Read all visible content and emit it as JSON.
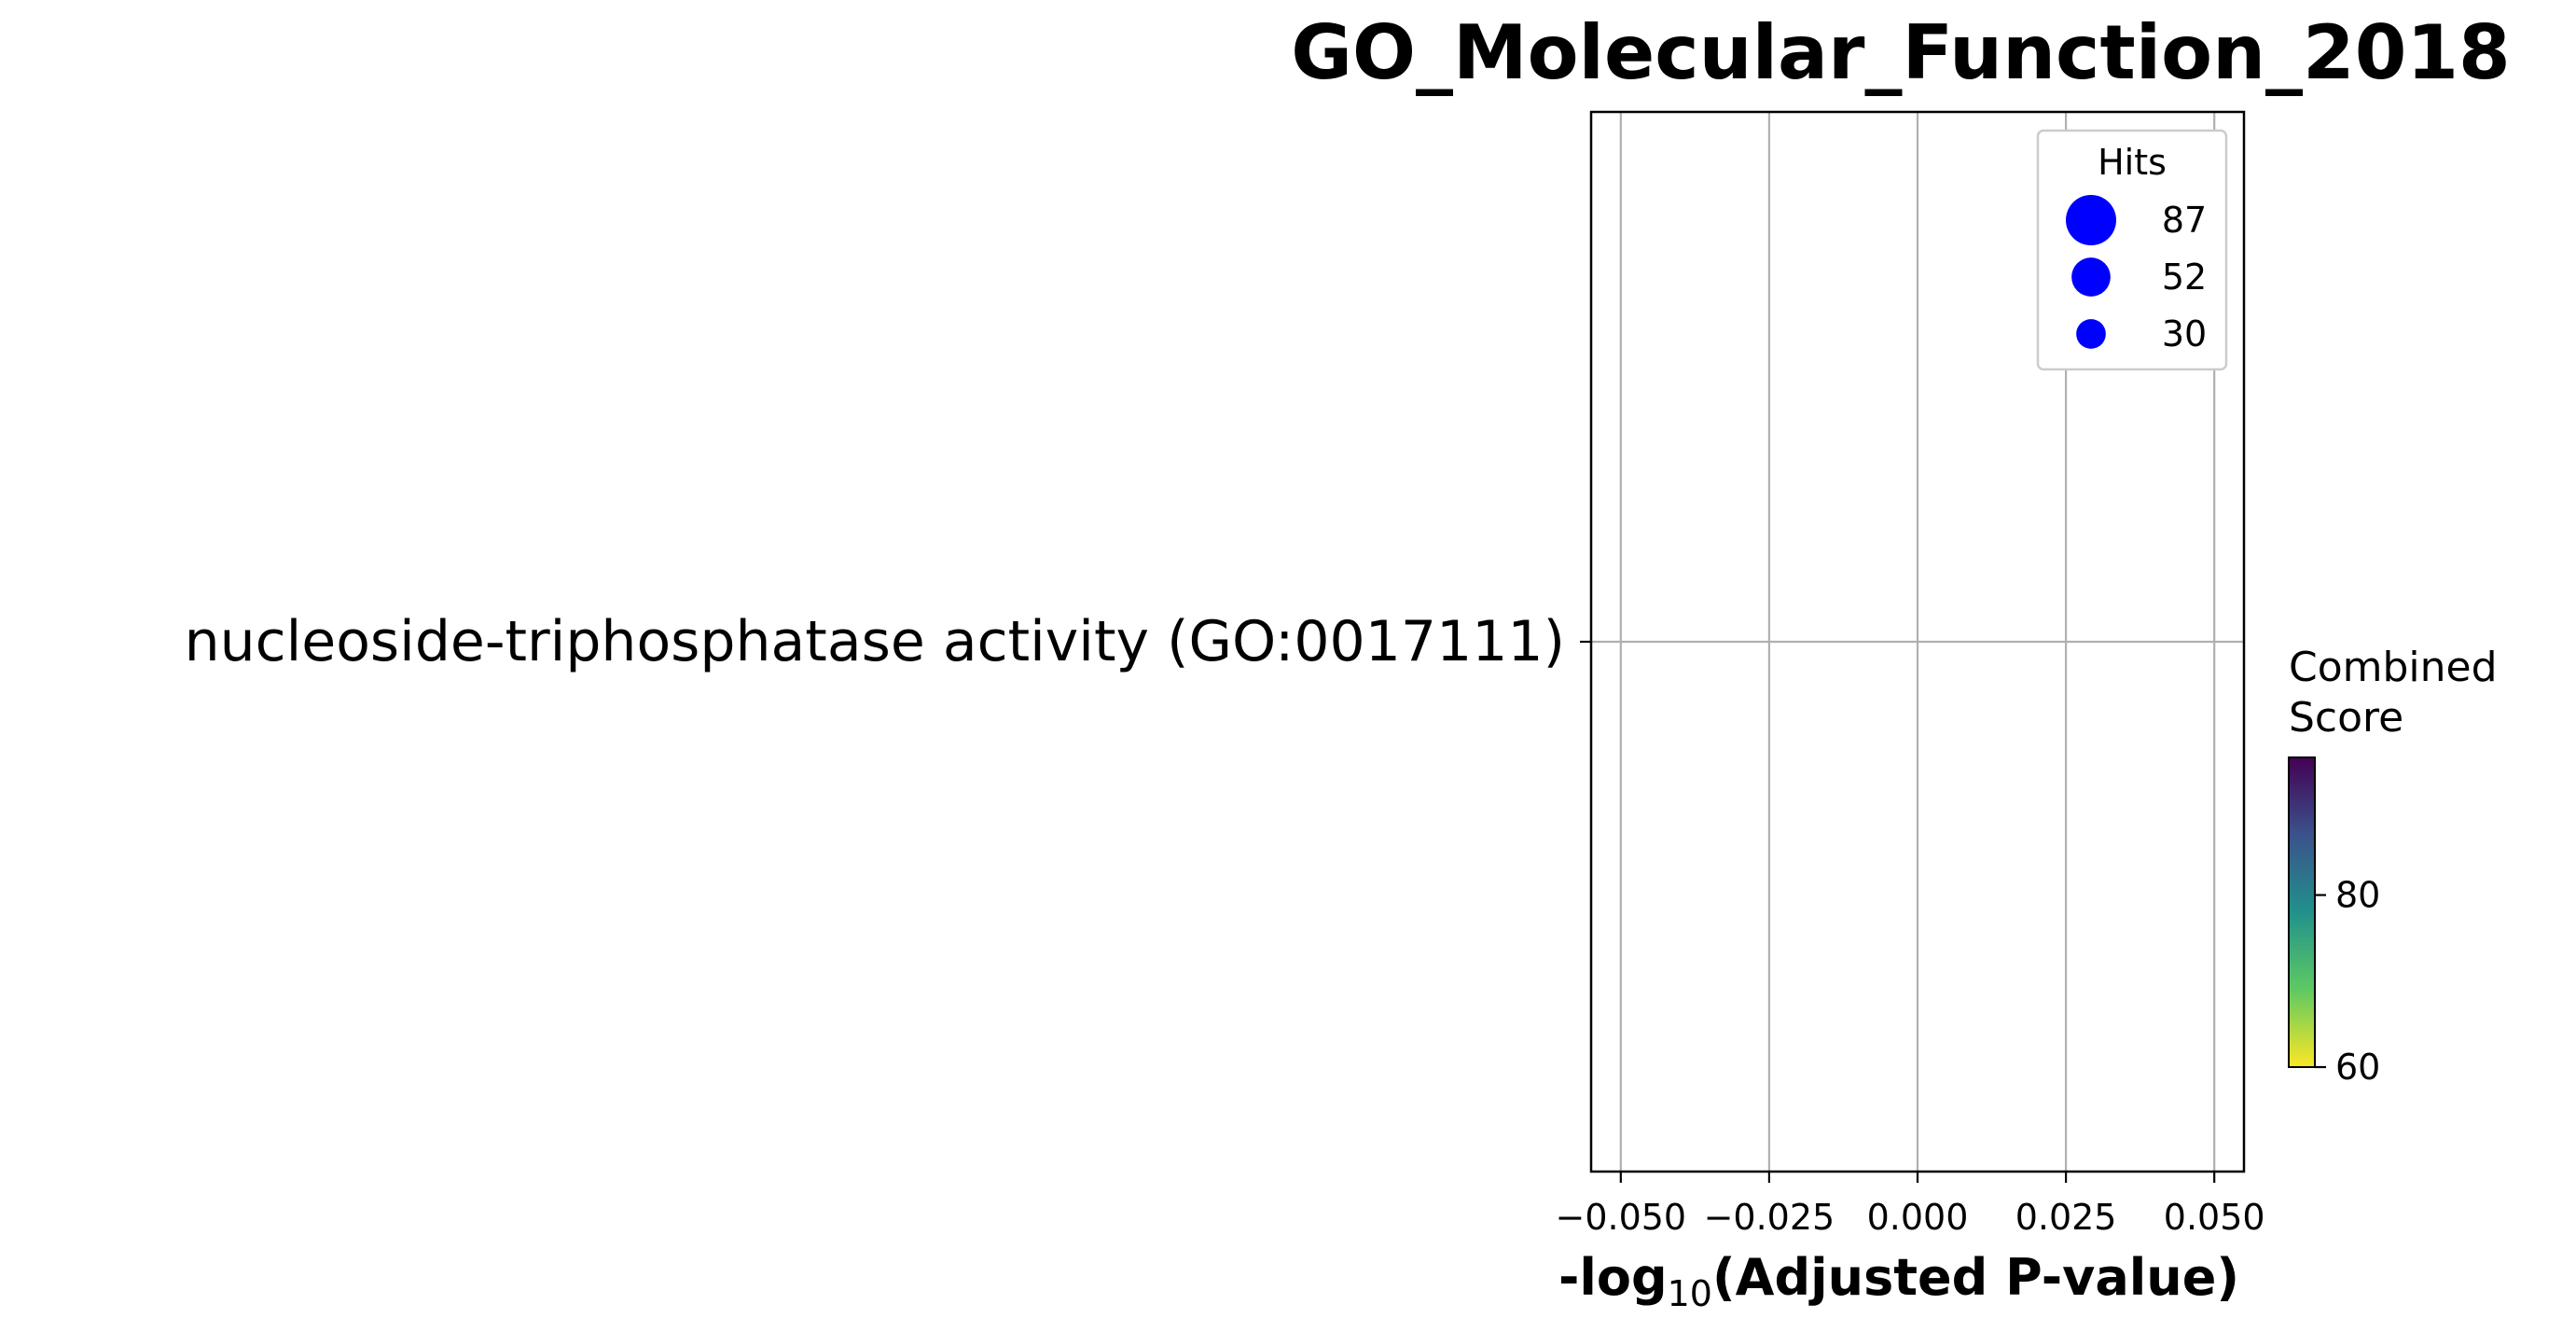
{
  "chart_data": {
    "type": "scatter",
    "title": "GO_Molecular_Function_2018",
    "xlabel": {
      "prefix": "-log",
      "subscript": "10",
      "suffix": "(Adjusted P-value)"
    },
    "ylabel": "",
    "categories": [
      "nucleoside-triphosphatase activity (GO:0017111)"
    ],
    "xlim": [
      -0.055,
      0.055
    ],
    "xticks": [
      -0.05,
      -0.025,
      0.0,
      0.025,
      0.05
    ],
    "xtick_labels": [
      "−0.050",
      "−0.025",
      "0.000",
      "0.025",
      "0.050"
    ],
    "grid": true,
    "points": [],
    "size_legend": {
      "title": "Hits",
      "placement": "top-right",
      "color": "#0000ff",
      "entries": [
        {
          "label": "87",
          "value": 87
        },
        {
          "label": "52",
          "value": 52
        },
        {
          "label": "30",
          "value": 30
        }
      ]
    },
    "colorbar": {
      "title": [
        "Combined",
        "Score"
      ],
      "colormap": "viridis_r",
      "range": [
        60,
        96
      ],
      "ticks": [
        60,
        80
      ],
      "tick_labels": [
        "60",
        "80"
      ]
    }
  }
}
